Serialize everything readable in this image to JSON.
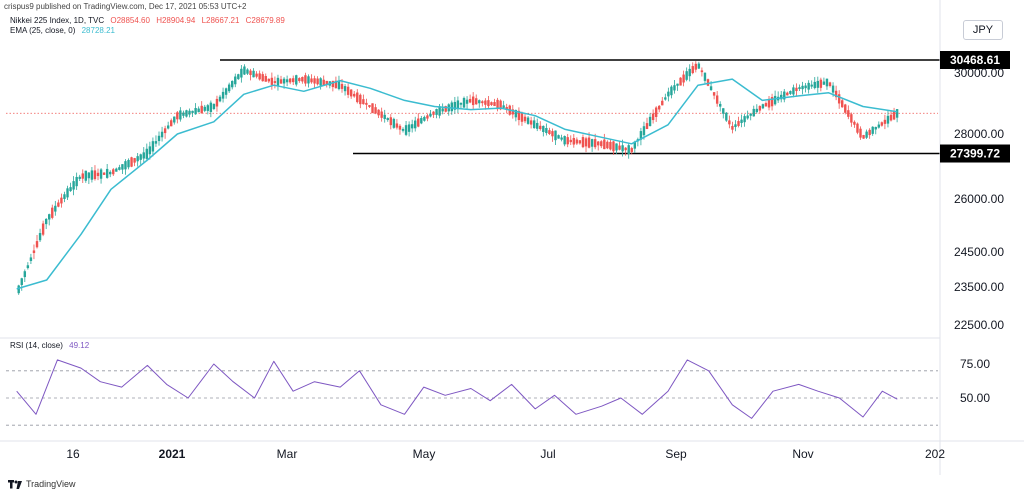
{
  "header": {
    "credit": "crispus9 published on TradingView.com, Dec 17, 2021 05:53 UTC+2",
    "symbol": "Nikkei 225 Index, 1D, TVC",
    "o": "O28854.60",
    "h": "H28904.94",
    "l": "L28667.21",
    "c": "C28679.89",
    "ema_label": "EMA (25, close, 0)",
    "ema_value": "28728.21",
    "rsi_label": "RSI (14, close)",
    "rsi_value": "49.12"
  },
  "currency": "JPY",
  "footer": {
    "brand": "TradingView"
  },
  "colors": {
    "up": "#26a69a",
    "down": "#ef5350",
    "ema": "#3bbcd0",
    "rsi": "#7e57c2",
    "level_line": "#000000",
    "level_badge": "#000000",
    "last_price_line": "#ef5350"
  },
  "chart_data": [
    {
      "type": "candlestick",
      "title": "Nikkei 225 Index, 1D, TVC",
      "y_ticks": [
        "30000.00",
        "28000.00",
        "26000.00",
        "24500.00",
        "23500.00",
        "22500.00"
      ],
      "x_ticks": [
        "16",
        "2021",
        "Mar",
        "May",
        "Jul",
        "Sep",
        "Nov",
        "202"
      ],
      "levels": [
        {
          "label": "30468.61",
          "value": 30468.61
        },
        {
          "label": "27399.72",
          "value": 27399.72
        }
      ],
      "last_price": 28679.89,
      "series": [
        {
          "name": "EMA (25, close, 0)",
          "kind": "line",
          "x": [
            "2020-11-01",
            "2020-11-15",
            "2020-12-01",
            "2020-12-15",
            "2021-01-01",
            "2021-01-15",
            "2021-02-01",
            "2021-02-15",
            "2021-03-01",
            "2021-03-15",
            "2021-04-01",
            "2021-04-15",
            "2021-05-01",
            "2021-05-15",
            "2021-06-01",
            "2021-06-15",
            "2021-07-01",
            "2021-07-15",
            "2021-08-01",
            "2021-08-15",
            "2021-09-01",
            "2021-09-15",
            "2021-10-01",
            "2021-10-15",
            "2021-11-01",
            "2021-11-15",
            "2021-12-01",
            "2021-12-17"
          ],
          "values": [
            23450,
            23700,
            25000,
            26300,
            27200,
            28000,
            28400,
            29300,
            29600,
            29400,
            29750,
            29500,
            29100,
            28900,
            28800,
            28850,
            28600,
            28150,
            27900,
            27700,
            28300,
            29600,
            29800,
            29100,
            29250,
            29350,
            28900,
            28728.21
          ]
        },
        {
          "name": "Nikkei 225 close",
          "kind": "candle-path",
          "x": [
            "2020-11-01",
            "2020-11-15",
            "2020-12-01",
            "2020-12-15",
            "2021-01-01",
            "2021-01-15",
            "2021-02-01",
            "2021-02-15",
            "2021-03-01",
            "2021-03-15",
            "2021-04-01",
            "2021-04-15",
            "2021-05-01",
            "2021-05-15",
            "2021-06-01",
            "2021-06-15",
            "2021-07-01",
            "2021-07-15",
            "2021-08-01",
            "2021-08-15",
            "2021-09-01",
            "2021-09-15",
            "2021-10-01",
            "2021-10-15",
            "2021-11-01",
            "2021-11-15",
            "2021-12-01",
            "2021-12-17"
          ],
          "values": [
            23300,
            25400,
            26700,
            26800,
            27400,
            28600,
            28900,
            30100,
            29700,
            29800,
            29600,
            28900,
            28100,
            28700,
            29100,
            28950,
            28300,
            27800,
            27700,
            27500,
            29300,
            30300,
            28200,
            28900,
            29500,
            29700,
            27900,
            28679.89
          ]
        }
      ]
    },
    {
      "type": "line",
      "title": "RSI (14, close)",
      "y_ticks": [
        "75.00",
        "50.00"
      ],
      "series": [
        {
          "name": "RSI (14, close)",
          "x": [
            "2020-11-01",
            "2020-11-10",
            "2020-11-20",
            "2020-12-01",
            "2020-12-10",
            "2020-12-20",
            "2021-01-01",
            "2021-01-10",
            "2021-01-20",
            "2021-02-01",
            "2021-02-10",
            "2021-02-20",
            "2021-03-01",
            "2021-03-10",
            "2021-03-20",
            "2021-04-01",
            "2021-04-10",
            "2021-04-20",
            "2021-05-01",
            "2021-05-10",
            "2021-05-20",
            "2021-06-01",
            "2021-06-10",
            "2021-06-20",
            "2021-07-01",
            "2021-07-10",
            "2021-07-20",
            "2021-08-01",
            "2021-08-10",
            "2021-08-20",
            "2021-09-01",
            "2021-09-10",
            "2021-09-20",
            "2021-10-01",
            "2021-10-10",
            "2021-10-20",
            "2021-11-01",
            "2021-11-10",
            "2021-11-20",
            "2021-12-01",
            "2021-12-10",
            "2021-12-17"
          ],
          "values": [
            55,
            38,
            78,
            72,
            62,
            58,
            74,
            60,
            50,
            75,
            62,
            50,
            77,
            55,
            62,
            58,
            70,
            45,
            38,
            58,
            52,
            57,
            48,
            60,
            42,
            52,
            38,
            44,
            50,
            38,
            55,
            78,
            70,
            45,
            35,
            55,
            60,
            55,
            50,
            36,
            55,
            49.12
          ]
        }
      ]
    }
  ]
}
